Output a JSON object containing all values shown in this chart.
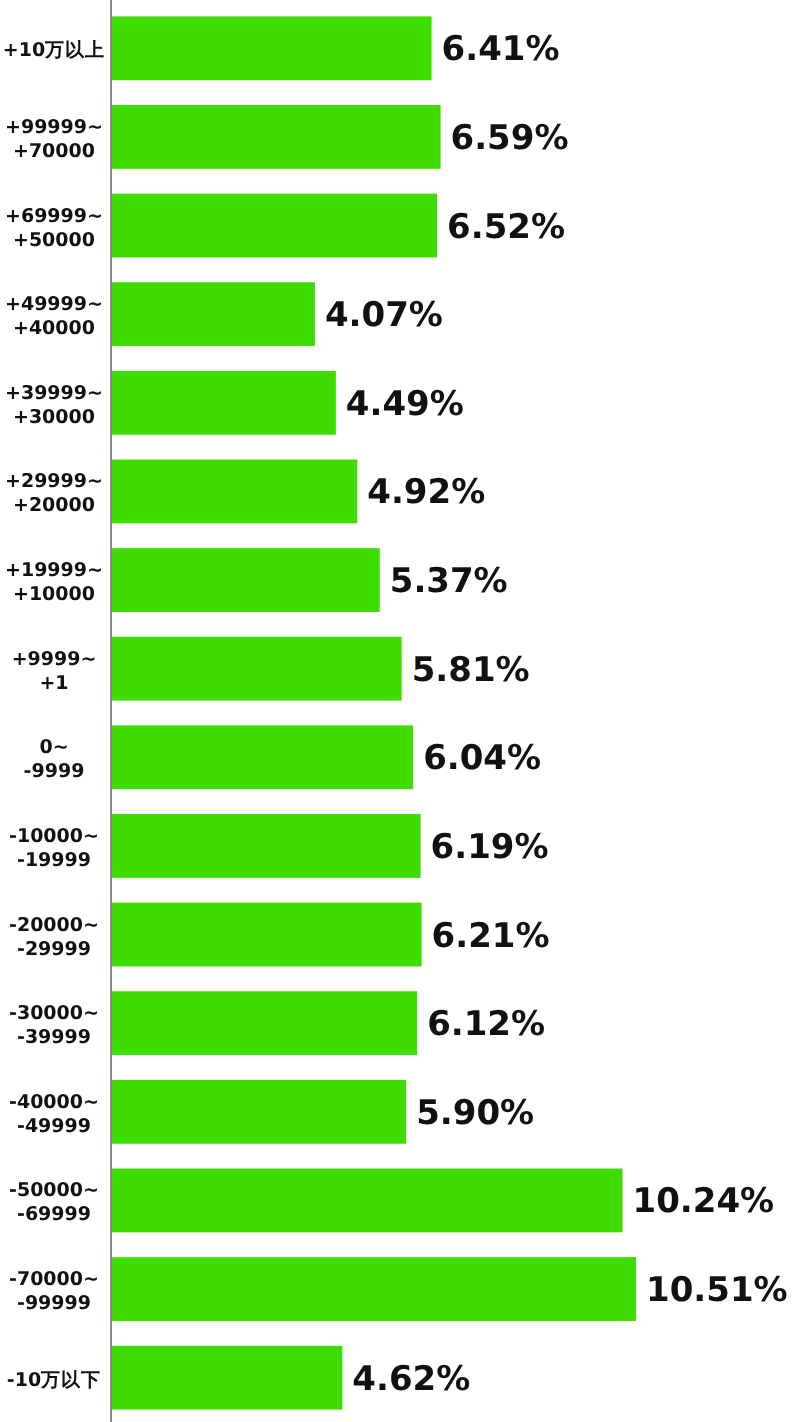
{
  "chart_data": {
    "type": "bar",
    "orientation": "horizontal",
    "categories": [
      "+10万以上",
      "+99999~+70000",
      "+69999~+50000",
      "+49999~+40000",
      "+39999~+30000",
      "+29999~+20000",
      "+19999~+10000",
      "+9999~+1",
      "0~-9999",
      "-10000~-19999",
      "-20000~-29999",
      "-30000~-39999",
      "-40000~-49999",
      "-50000~-69999",
      "-70000~-99999",
      "-10万以下"
    ],
    "values": [
      6.41,
      6.59,
      6.52,
      4.07,
      4.49,
      4.92,
      5.37,
      5.81,
      6.04,
      6.19,
      6.21,
      6.12,
      5.9,
      10.24,
      10.51,
      4.62
    ],
    "value_labels": [
      "6.41%",
      "6.59%",
      "6.52%",
      "4.07%",
      "4.49%",
      "4.92%",
      "5.37%",
      "5.81%",
      "6.04%",
      "6.19%",
      "6.21%",
      "6.12%",
      "5.90%",
      "10.24%",
      "10.51%",
      "4.62%"
    ],
    "color": "#3fdc00"
  }
}
